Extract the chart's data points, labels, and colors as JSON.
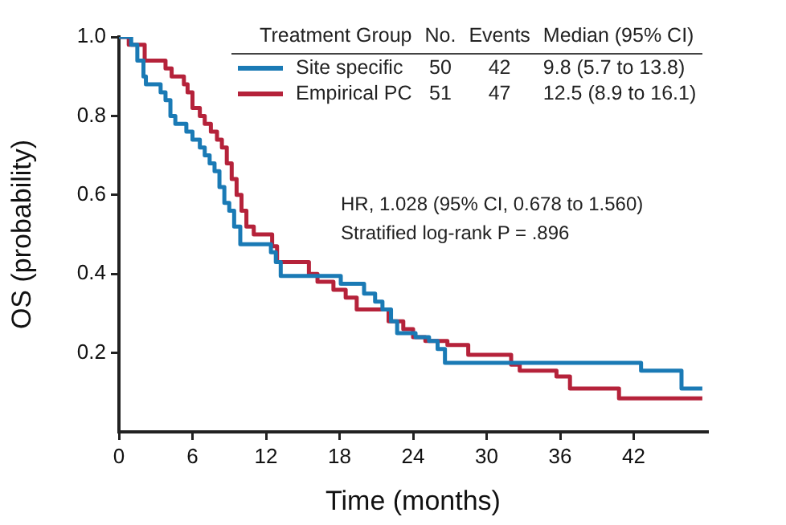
{
  "chart_data": {
    "type": "step",
    "xlabel": "Time (months)",
    "ylabel": "OS (probability)",
    "legend_title": "Treatment Group",
    "legend": "top",
    "xlim": [
      0,
      48
    ],
    "xticks": [
      0,
      6,
      12,
      18,
      24,
      30,
      36,
      42
    ],
    "ylim": [
      0,
      1.0
    ],
    "yticks": [
      0.2,
      0.4,
      0.6,
      0.8,
      {
        "value": 1.0,
        "label": "1.0"
      }
    ],
    "grid": false,
    "marker": "none",
    "line_style": "solid",
    "series": [
      {
        "name": "Site specific",
        "color": "#1a7ab5",
        "x": [
          0,
          1,
          1.5,
          2,
          2.2,
          3.4,
          3.8,
          4.2,
          4.6,
          5.5,
          6,
          6.6,
          7,
          7.4,
          7.8,
          8.2,
          8.6,
          9,
          9.4,
          9.9,
          12.4,
          12.8,
          13.2,
          18.1,
          20,
          20.9,
          21.5,
          22.2,
          22.7,
          24.2,
          25.3,
          26,
          26.6,
          42.6,
          45.9,
          47.6
        ],
        "values": [
          1,
          0.98,
          0.94,
          0.9,
          0.88,
          0.86,
          0.84,
          0.8,
          0.78,
          0.76,
          0.74,
          0.72,
          0.7,
          0.68,
          0.66,
          0.62,
          0.58,
          0.56,
          0.52,
          0.475,
          0.455,
          0.43,
          0.395,
          0.375,
          0.35,
          0.33,
          0.31,
          0.28,
          0.25,
          0.24,
          0.23,
          0.21,
          0.175,
          0.155,
          0.11,
          0.11
        ]
      },
      {
        "name": "Empirical PC",
        "color": "#b5223a",
        "x": [
          0,
          0.8,
          2.1,
          3.8,
          4.3,
          5.3,
          5.6,
          6,
          6.6,
          7,
          7.5,
          8,
          8.4,
          8.8,
          9.2,
          9.6,
          10,
          10.4,
          11,
          12.5,
          12.9,
          15.5,
          16.2,
          17.5,
          18.5,
          19.4,
          22,
          23.2,
          24,
          25,
          26.8,
          28.5,
          32,
          32.7,
          35.7,
          36.8,
          40.8,
          47.6
        ],
        "values": [
          1,
          0.98,
          0.94,
          0.92,
          0.9,
          0.88,
          0.86,
          0.82,
          0.8,
          0.78,
          0.76,
          0.74,
          0.72,
          0.68,
          0.64,
          0.6,
          0.56,
          0.52,
          0.5,
          0.47,
          0.43,
          0.4,
          0.38,
          0.36,
          0.34,
          0.31,
          0.28,
          0.26,
          0.24,
          0.23,
          0.22,
          0.195,
          0.17,
          0.155,
          0.14,
          0.11,
          0.085,
          0.085
        ]
      }
    ],
    "annotations": [
      "No.",
      "Events",
      "Median (95% CI)",
      "50",
      "42",
      "9.8 (5.7 to 13.8)",
      "51",
      "47",
      "12.5 (8.9 to 16.1)",
      "HR, 1.028 (95% CI, 0.678 to 1.560)",
      "Stratified log-rank P = .896"
    ]
  }
}
